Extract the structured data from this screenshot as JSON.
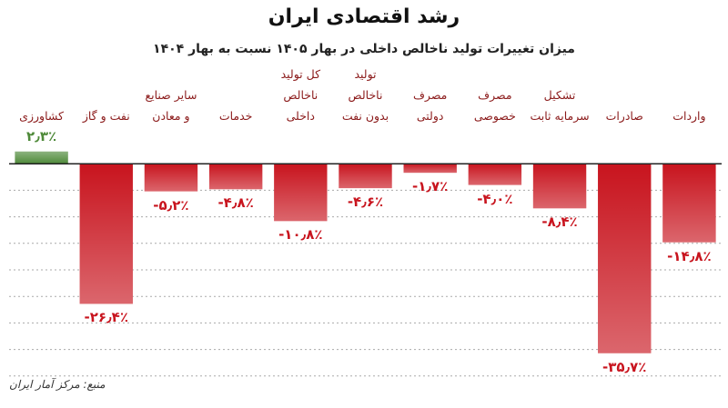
{
  "chart_data": {
    "type": "bar",
    "title": "رشد اقتصادی ایران",
    "subtitle": "میزان تغییرات تولید ناخالص داخلی در بهار ۱۴۰۵ نسبت به بهار ۱۴۰۴",
    "source": "منبع: مرکز آمار ایران",
    "categories": [
      "کشاورزی",
      "نفت و گاز",
      "سایر صنایع\nو معادن",
      "خدمات",
      "کل تولید\nناخالص\nداخلی",
      "تولید\nناخالص\nبدون نفت",
      "مصرف\nدولتی",
      "مصرف\nخصوصی",
      "تشکیل\nسرمایه ثابت",
      "صادرات",
      "واردات"
    ],
    "values": [
      2.3,
      -26.4,
      -5.2,
      -4.8,
      -10.8,
      -4.6,
      -1.7,
      -4.0,
      -8.4,
      -35.7,
      -14.8
    ],
    "value_labels": [
      "۲٫۳٪",
      "-۲۶٫۴٪",
      "-۵٫۲٪",
      "-۴٫۸٪",
      "-۱۰٫۸٪",
      "-۴٫۶٪",
      "-۱٫۷٪",
      "-۴٫۰٪",
      "-۸٫۴٪",
      "-۳۵٫۷٪",
      "-۱۴٫۸٪"
    ],
    "color": "#c8141e",
    "positive_color": "#4f8a3a",
    "ylim": [
      -45,
      5
    ],
    "yticks": [
      -5,
      -10,
      -15,
      -20,
      -25,
      -30,
      -35,
      -40
    ],
    "grid": true
  }
}
